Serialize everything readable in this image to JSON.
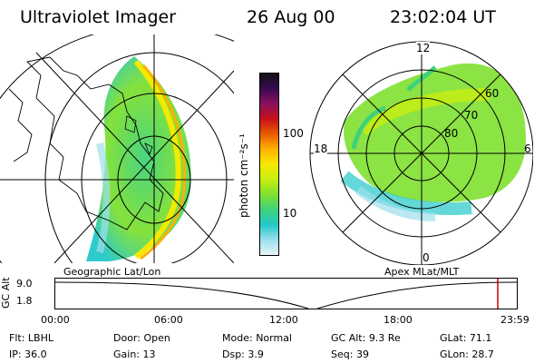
{
  "header": {
    "title": "Ultraviolet Imager",
    "date": "26 Aug 00",
    "time": "23:02:04 UT"
  },
  "panels": {
    "left_caption": "Geographic Lat/Lon",
    "right_caption": "Apex MLat/MLT"
  },
  "colorbar": {
    "unit_label": "photon cm⁻²s⁻¹",
    "ticks": [
      "100",
      "10"
    ],
    "colors": [
      "#111111",
      "#3a0a52",
      "#8a1060",
      "#c81018",
      "#e85c00",
      "#ffb000",
      "#f4ea00",
      "#c8ee10",
      "#7fe030",
      "#40d27a",
      "#22c8c8",
      "#9ce0ec",
      "#e6f4f8"
    ]
  },
  "polar": {
    "mlt_labels": {
      "top": "12",
      "right": "6",
      "bottom": "0",
      "left": "18"
    },
    "mlat_labels": [
      "60",
      "70",
      "80"
    ]
  },
  "altitude": {
    "axis_label": "GC Alt",
    "ticks": [
      "9.0",
      "1.8"
    ],
    "time_ticks": [
      "00:00",
      "06:00",
      "12:00",
      "18:00",
      "23:59"
    ]
  },
  "info": {
    "row1": [
      {
        "key": "Flt:",
        "val": "LBHL"
      },
      {
        "key": "Door:",
        "val": "Open"
      },
      {
        "key": "Mode:",
        "val": "Normal"
      },
      {
        "key": "GC Alt:",
        "val": "9.3 Re"
      },
      {
        "key": "GLat:",
        "val": "71.1"
      }
    ],
    "row2": [
      {
        "key": "IP:",
        "val": "36.0"
      },
      {
        "key": "Gain:",
        "val": "13"
      },
      {
        "key": "Dsp:",
        "val": "3.9"
      },
      {
        "key": "Seq:",
        "val": "39"
      },
      {
        "key": "GLon:",
        "val": "28.7"
      }
    ]
  }
}
